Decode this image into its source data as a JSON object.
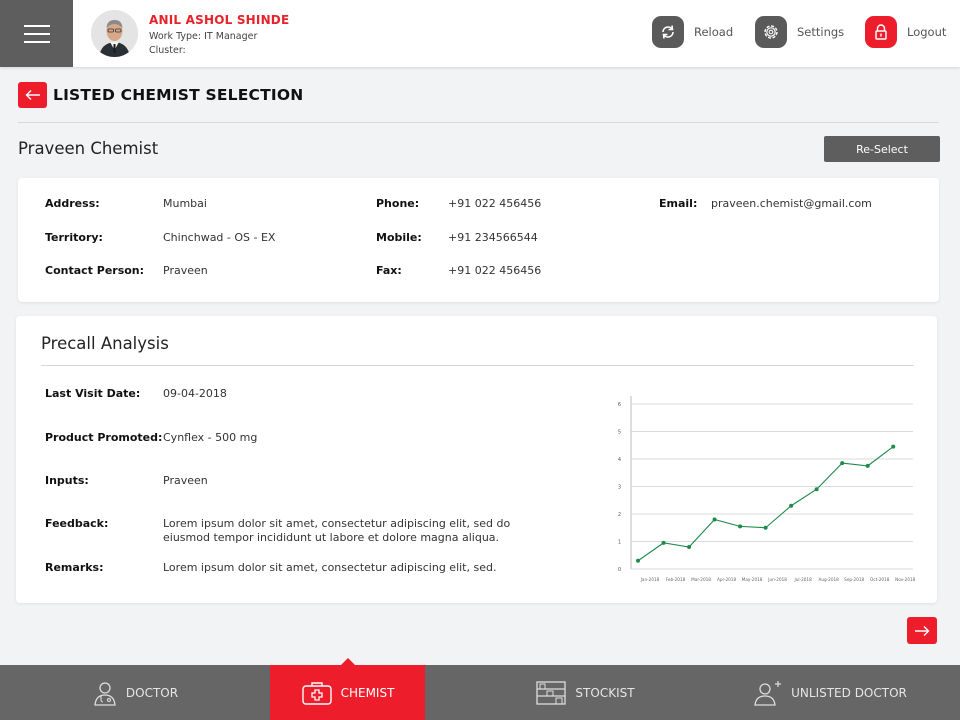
{
  "header": {
    "user": {
      "name": "ANIL ASHOL SHINDE",
      "work_type": "Work Type: IT Manager",
      "cluster": "Cluster:"
    },
    "actions": [
      {
        "label": "Reload",
        "icon": "reload-icon"
      },
      {
        "label": "Settings",
        "icon": "gear-icon"
      },
      {
        "label": "Logout",
        "icon": "lock-icon"
      }
    ]
  },
  "page": {
    "title": "LISTED CHEMIST SELECTION",
    "chemist_name": "Praveen Chemist",
    "reselect_label": "Re-Select"
  },
  "details": {
    "address_label": "Address:",
    "address": "Mumbai",
    "territory_label": "Territory:",
    "territory": "Chinchwad - OS - EX",
    "contact_label": "Contact Person:",
    "contact": "Praveen",
    "phone_label": "Phone:",
    "phone": "+91 022 456456",
    "mobile_label": "Mobile:",
    "mobile": "+91 234566544",
    "fax_label": "Fax:",
    "fax": "+91 022 456456",
    "email_label": "Email:",
    "email": "praveen.chemist@gmail.com"
  },
  "precall": {
    "title": "Precall Analysis",
    "last_visit_label": "Last Visit Date:",
    "last_visit": "09-04-2018",
    "product_label": "Product Promoted:",
    "product": "Cynflex - 500 mg",
    "inputs_label": "Inputs:",
    "inputs": "Praveen",
    "feedback_label": "Feedback:",
    "feedback": "Lorem ipsum dolor sit amet, consectetur adipiscing elit, sed do eiusmod tempor incididunt ut labore et dolore magna aliqua.",
    "remarks_label": "Remarks:",
    "remarks": "Lorem ipsum dolor sit amet, consectetur adipiscing elit, sed."
  },
  "chart_data": {
    "type": "line",
    "title": "",
    "xlabel": "",
    "ylabel": "",
    "categories": [
      "Jan-2018",
      "Feb-2018",
      "Mar-2018",
      "Apr-2018",
      "May-2018",
      "Jun-2018",
      "Jul-2018",
      "Aug-2018",
      "Sep-2018",
      "Oct-2018",
      "Nov-2018"
    ],
    "x": [
      0,
      1,
      2,
      3,
      4,
      5,
      6,
      7,
      8,
      9,
      10,
      11,
      12,
      13,
      14,
      15,
      16,
      17,
      18,
      19,
      20,
      21
    ],
    "values": [
      0.3,
      0.95,
      0.8,
      1.8,
      1.55,
      1.5,
      2.3,
      2.9,
      3.85,
      3.75,
      4.45
    ],
    "point_index": [
      0,
      2,
      4,
      6,
      8,
      10,
      12,
      14,
      16,
      18,
      20
    ],
    "yticks": [
      0,
      1,
      2,
      3,
      4,
      5,
      6
    ],
    "ylim": [
      0,
      6
    ],
    "grid": true,
    "line_color": "#1e8a4c"
  },
  "colors": {
    "accent": "#ee1d2b",
    "dark": "#5e5e5e"
  },
  "bottom_nav": [
    {
      "label": "DOCTOR",
      "icon": "doctor-icon"
    },
    {
      "label": "CHEMIST",
      "icon": "medical-kit-icon"
    },
    {
      "label": "STOCKIST",
      "icon": "shelf-icon"
    },
    {
      "label": "UNLISTED DOCTOR",
      "icon": "add-doctor-icon"
    }
  ]
}
